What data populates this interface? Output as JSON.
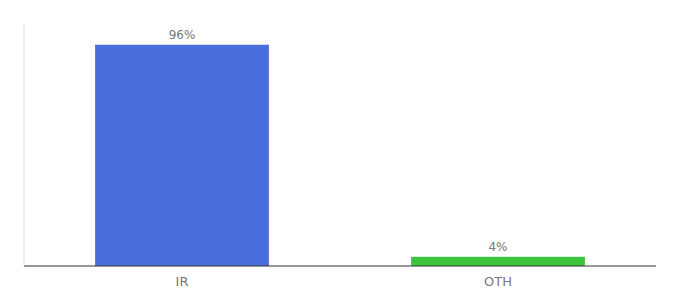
{
  "chart_data": {
    "type": "bar",
    "categories": [
      "IR",
      "OTH"
    ],
    "values": [
      96,
      4
    ],
    "value_labels": [
      "96%",
      "4%"
    ],
    "colors": [
      "#4a6edb",
      "#3ec43e"
    ],
    "ylim": [
      0,
      105
    ],
    "data_labels": true,
    "tick_labels": "x"
  }
}
